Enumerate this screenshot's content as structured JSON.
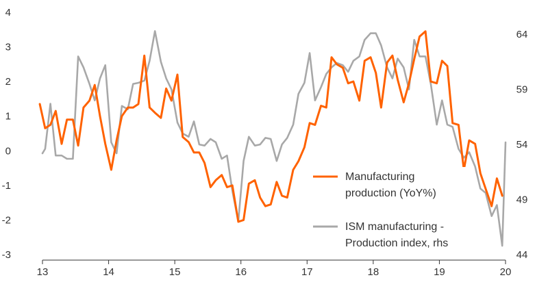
{
  "chart_data": {
    "type": "line",
    "title": "",
    "xlabel": "",
    "ylabel_left": "",
    "ylabel_right": "",
    "x_ticks": [
      {
        "value": 2013,
        "label": "13"
      },
      {
        "value": 2014,
        "label": "14"
      },
      {
        "value": 2015,
        "label": "15"
      },
      {
        "value": 2016,
        "label": "16"
      },
      {
        "value": 2017,
        "label": "17"
      },
      {
        "value": 2018,
        "label": "18"
      },
      {
        "value": 2019,
        "label": "19"
      },
      {
        "value": 2020,
        "label": "20"
      }
    ],
    "x_range": [
      2013,
      2020
    ],
    "y_left": {
      "range": [
        -3,
        4
      ],
      "ticks": [
        -3,
        -2,
        -1,
        0,
        1,
        2,
        3,
        4
      ]
    },
    "y_right": {
      "range": [
        44,
        66
      ],
      "ticks": [
        44,
        49,
        54,
        59,
        64
      ]
    },
    "grid": false,
    "legend_position": "right, inside plot",
    "series": [
      {
        "name": "Manufacturing production (YoY%)",
        "label_lines": [
          "Manufacturing",
          "production (YoY%)"
        ],
        "color": "#FF6200",
        "axis": "left",
        "x": [
          2012.96,
          2013.04,
          2013.12,
          2013.2,
          2013.29,
          2013.37,
          2013.46,
          2013.54,
          2013.62,
          2013.71,
          2013.79,
          2013.87,
          2013.95,
          2014.04,
          2014.12,
          2014.2,
          2014.29,
          2014.37,
          2014.45,
          2014.54,
          2014.62,
          2014.7,
          2014.79,
          2014.87,
          2014.95,
          2015.04,
          2015.12,
          2015.21,
          2015.29,
          2015.37,
          2015.45,
          2015.54,
          2015.62,
          2015.71,
          2015.79,
          2015.87,
          2015.96,
          2016.04,
          2016.12,
          2016.21,
          2016.29,
          2016.37,
          2016.45,
          2016.54,
          2016.62,
          2016.7,
          2016.79,
          2016.87,
          2016.96,
          2017.04,
          2017.12,
          2017.21,
          2017.29,
          2017.37,
          2017.45,
          2017.54,
          2017.62,
          2017.7,
          2017.79,
          2017.87,
          2017.96,
          2018.04,
          2018.12,
          2018.21,
          2018.29,
          2018.37,
          2018.46,
          2018.54,
          2018.62,
          2018.7,
          2018.79,
          2018.87,
          2018.96,
          2019.04,
          2019.12,
          2019.2,
          2019.29,
          2019.37,
          2019.45,
          2019.54,
          2019.62,
          2019.7,
          2019.79,
          2019.87,
          2019.95
        ],
        "y": [
          1.35,
          0.65,
          0.75,
          1.15,
          0.2,
          0.9,
          0.9,
          0.15,
          1.25,
          1.45,
          1.9,
          1.0,
          0.2,
          -0.55,
          0.3,
          1.0,
          1.25,
          1.25,
          1.35,
          2.75,
          1.25,
          1.1,
          0.95,
          1.8,
          1.45,
          2.2,
          0.4,
          0.25,
          -0.05,
          -0.05,
          -0.35,
          -1.05,
          -0.85,
          -0.7,
          -1.05,
          -1.0,
          -2.05,
          -2.0,
          -0.95,
          -0.85,
          -1.35,
          -1.6,
          -1.55,
          -0.9,
          -1.3,
          -1.35,
          -0.55,
          -0.3,
          0.1,
          0.8,
          0.75,
          1.3,
          1.25,
          2.7,
          2.5,
          2.4,
          1.95,
          2.0,
          1.45,
          2.6,
          2.7,
          2.25,
          1.25,
          2.55,
          2.75,
          2.05,
          1.4,
          1.95,
          2.65,
          3.3,
          3.45,
          2.0,
          1.95,
          2.6,
          2.45,
          0.8,
          0.75,
          -0.55,
          0.3,
          0.2,
          -0.65,
          -1.1,
          -1.6,
          -0.8,
          -1.3
        ]
      },
      {
        "name": "ISM manufacturing - Production index, rhs",
        "label_lines": [
          "ISM manufacturing -",
          "Production index, rhs"
        ],
        "color": "#A8A8A8",
        "axis": "right",
        "x": [
          2013.0,
          2013.04,
          2013.12,
          2013.2,
          2013.29,
          2013.37,
          2013.46,
          2013.54,
          2013.62,
          2013.71,
          2013.79,
          2013.87,
          2013.95,
          2014.04,
          2014.12,
          2014.2,
          2014.29,
          2014.37,
          2014.45,
          2014.54,
          2014.62,
          2014.7,
          2014.79,
          2014.87,
          2014.95,
          2015.04,
          2015.12,
          2015.21,
          2015.29,
          2015.37,
          2015.45,
          2015.54,
          2015.62,
          2015.71,
          2015.79,
          2015.87,
          2015.96,
          2016.04,
          2016.12,
          2016.21,
          2016.29,
          2016.37,
          2016.45,
          2016.54,
          2016.62,
          2016.7,
          2016.79,
          2016.87,
          2016.96,
          2017.04,
          2017.12,
          2017.21,
          2017.29,
          2017.37,
          2017.45,
          2017.54,
          2017.62,
          2017.7,
          2017.79,
          2017.87,
          2017.96,
          2018.04,
          2018.12,
          2018.21,
          2018.29,
          2018.37,
          2018.46,
          2018.54,
          2018.62,
          2018.7,
          2018.79,
          2018.87,
          2018.96,
          2019.04,
          2019.12,
          2019.2,
          2019.29,
          2019.37,
          2019.45,
          2019.54,
          2019.62,
          2019.7,
          2019.79,
          2019.87,
          2019.95,
          2020.0
        ],
        "y": [
          53.2,
          53.6,
          57.7,
          53.0,
          53.0,
          52.7,
          52.7,
          62.0,
          61.0,
          59.5,
          58.0,
          60.0,
          61.2,
          54.2,
          53.2,
          57.5,
          57.2,
          59.5,
          59.6,
          59.8,
          61.6,
          64.3,
          61.5,
          60.0,
          59.0,
          56.0,
          55.0,
          54.7,
          56.1,
          54.0,
          53.9,
          54.5,
          54.2,
          52.7,
          53.0,
          49.8,
          47.0,
          52.5,
          54.7,
          53.9,
          54.0,
          54.6,
          54.5,
          52.5,
          54.0,
          54.6,
          55.8,
          58.6,
          59.6,
          62.3,
          58.0,
          59.2,
          60.4,
          61.0,
          61.4,
          61.2,
          60.6,
          61.6,
          62.0,
          63.5,
          64.1,
          64.1,
          63.0,
          61.0,
          60.0,
          61.8,
          61.0,
          59.0,
          63.5,
          62.0,
          62.0,
          59.5,
          55.8,
          58.0,
          55.8,
          55.6,
          53.6,
          52.8,
          53.3,
          52.0,
          50.0,
          49.6,
          47.5,
          48.5,
          44.8,
          54.2
        ]
      }
    ]
  }
}
